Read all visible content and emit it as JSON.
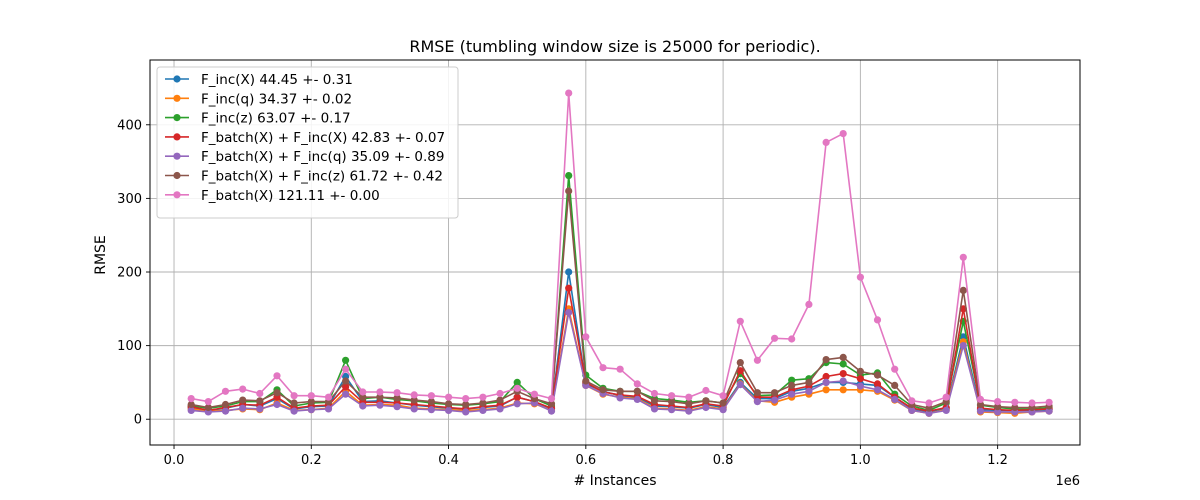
{
  "chart_data": {
    "type": "line",
    "title": "RMSE (tumbling window size is 25000 for periodic).",
    "xlabel": "# Instances",
    "ylabel": "RMSE",
    "x_offset_label": "1e6",
    "xlim": [
      -0.035,
      1.32
    ],
    "ylim": [
      -35,
      488
    ],
    "x_ticks": [
      0.0,
      0.2,
      0.4,
      0.6,
      0.8,
      1.0,
      1.2
    ],
    "x_tick_labels": [
      "0.0",
      "0.2",
      "0.4",
      "0.6",
      "0.8",
      "1.0",
      "1.2"
    ],
    "y_ticks": [
      0,
      100,
      200,
      300,
      400
    ],
    "y_tick_labels": [
      "0",
      "100",
      "200",
      "300",
      "400"
    ],
    "grid": true,
    "legend_position": "upper-left",
    "x": [
      0.025,
      0.05,
      0.075,
      0.1,
      0.125,
      0.15,
      0.175,
      0.2,
      0.225,
      0.25,
      0.275,
      0.3,
      0.325,
      0.35,
      0.375,
      0.4,
      0.425,
      0.45,
      0.475,
      0.5,
      0.525,
      0.55,
      0.575,
      0.6,
      0.625,
      0.65,
      0.675,
      0.7,
      0.725,
      0.75,
      0.775,
      0.8,
      0.825,
      0.85,
      0.875,
      0.9,
      0.925,
      0.95,
      0.975,
      1.0,
      1.025,
      1.05,
      1.075,
      1.1,
      1.125,
      1.15,
      1.175,
      1.2,
      1.225,
      1.25,
      1.275
    ],
    "series": [
      {
        "name": "F_inc(X) 44.45 +- 0.31",
        "color": "#1f77b4",
        "values": [
          16,
          12,
          15,
          20,
          18,
          28,
          14,
          17,
          18,
          58,
          24,
          25,
          22,
          19,
          17,
          15,
          14,
          16,
          18,
          30,
          24,
          14,
          200,
          48,
          38,
          32,
          30,
          18,
          17,
          15,
          20,
          16,
          50,
          28,
          28,
          38,
          42,
          50,
          50,
          48,
          46,
          30,
          14,
          10,
          15,
          112,
          13,
          12,
          12,
          12,
          13
        ]
      },
      {
        "name": "F_inc(q) 34.37 +- 0.02",
        "color": "#ff7f0e",
        "values": [
          14,
          11,
          12,
          14,
          13,
          22,
          12,
          13,
          15,
          38,
          19,
          20,
          19,
          15,
          14,
          13,
          12,
          13,
          15,
          22,
          21,
          12,
          150,
          46,
          34,
          30,
          28,
          15,
          14,
          12,
          17,
          14,
          48,
          25,
          23,
          30,
          34,
          40,
          40,
          40,
          38,
          26,
          12,
          8,
          13,
          105,
          10,
          9,
          8,
          10,
          11
        ]
      },
      {
        "name": "F_inc(z) 63.07 +- 0.17",
        "color": "#2ca02c",
        "values": [
          18,
          15,
          18,
          24,
          24,
          40,
          18,
          22,
          23,
          80,
          28,
          30,
          27,
          25,
          22,
          20,
          19,
          21,
          24,
          50,
          28,
          18,
          331,
          60,
          42,
          38,
          38,
          28,
          26,
          23,
          25,
          22,
          62,
          32,
          33,
          53,
          55,
          77,
          75,
          60,
          63,
          34,
          18,
          12,
          22,
          133,
          19,
          16,
          14,
          14,
          16
        ]
      },
      {
        "name": "F_batch(X) + F_inc(X) 42.83 +- 0.07",
        "color": "#d62728",
        "values": [
          17,
          12,
          16,
          20,
          19,
          30,
          15,
          18,
          19,
          44,
          23,
          23,
          22,
          20,
          18,
          16,
          14,
          17,
          19,
          30,
          24,
          15,
          178,
          50,
          37,
          33,
          31,
          20,
          18,
          16,
          21,
          18,
          66,
          30,
          30,
          40,
          45,
          58,
          62,
          55,
          48,
          30,
          15,
          11,
          16,
          150,
          15,
          13,
          12,
          13,
          14
        ]
      },
      {
        "name": "F_batch(X) + F_inc(q) 35.09 +- 0.89",
        "color": "#9467bd",
        "values": [
          12,
          10,
          11,
          15,
          14,
          20,
          11,
          13,
          14,
          34,
          18,
          19,
          17,
          14,
          13,
          12,
          10,
          12,
          14,
          21,
          22,
          11,
          145,
          46,
          35,
          29,
          27,
          14,
          13,
          11,
          16,
          13,
          47,
          24,
          26,
          34,
          38,
          50,
          52,
          45,
          40,
          27,
          12,
          8,
          12,
          100,
          11,
          10,
          10,
          10,
          11
        ]
      },
      {
        "name": "F_batch(X) + F_inc(z) 61.72 +- 0.42",
        "color": "#8c564b",
        "values": [
          20,
          16,
          20,
          26,
          25,
          36,
          22,
          24,
          24,
          52,
          30,
          30,
          29,
          26,
          24,
          21,
          20,
          22,
          26,
          38,
          28,
          21,
          310,
          52,
          40,
          38,
          38,
          25,
          24,
          21,
          25,
          22,
          77,
          36,
          36,
          46,
          50,
          81,
          84,
          65,
          60,
          46,
          20,
          15,
          24,
          175,
          20,
          17,
          16,
          16,
          18
        ]
      },
      {
        "name": "F_batch(X) 121.11 +- 0.00",
        "color": "#e377c2",
        "values": [
          28,
          24,
          38,
          41,
          35,
          59,
          32,
          32,
          30,
          68,
          37,
          37,
          36,
          33,
          32,
          30,
          28,
          30,
          35,
          42,
          34,
          28,
          443,
          112,
          70,
          68,
          48,
          35,
          32,
          30,
          39,
          32,
          133,
          80,
          110,
          109,
          156,
          376,
          388,
          193,
          135,
          68,
          25,
          22,
          30,
          220,
          27,
          24,
          23,
          22,
          23
        ]
      }
    ]
  }
}
